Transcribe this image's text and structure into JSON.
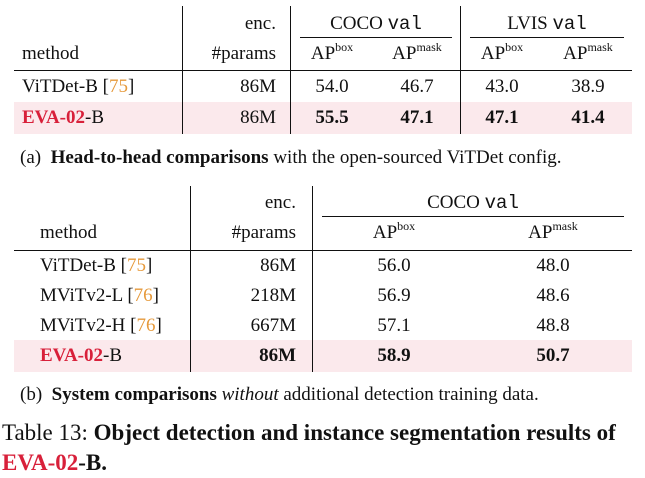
{
  "table_a": {
    "header": {
      "enc": "enc.",
      "method": "method",
      "params": "#params",
      "coco_prefix": "COCO",
      "coco_split": "val",
      "lvis_prefix": "LVIS",
      "lvis_split": "val",
      "ap": "AP",
      "box": "box",
      "mask": "mask"
    },
    "rows": [
      {
        "name": "ViTDet-B",
        "cite": "75",
        "params": "86M",
        "coco_box": "54.0",
        "coco_mask": "46.7",
        "lvis_box": "43.0",
        "lvis_mask": "38.9"
      },
      {
        "name_red": "EVA-02",
        "name_suffix": "-B",
        "params": "86M",
        "coco_box": "55.5",
        "coco_mask": "47.1",
        "lvis_box": "47.1",
        "lvis_mask": "41.4"
      }
    ],
    "caption": {
      "label": "(a)",
      "bold": "Head-to-head comparisons",
      "rest": "with the open-sourced ViTDet config."
    }
  },
  "table_b": {
    "header": {
      "enc": "enc.",
      "method": "method",
      "params": "#params",
      "coco_prefix": "COCO",
      "coco_split": "val",
      "ap": "AP",
      "box": "box",
      "mask": "mask"
    },
    "rows": [
      {
        "name": "ViTDet-B",
        "cite": "75",
        "params": "86M",
        "box": "56.0",
        "mask": "48.0"
      },
      {
        "name": "MViTv2-L",
        "cite": "76",
        "params": "218M",
        "box": "56.9",
        "mask": "48.6"
      },
      {
        "name": "MViTv2-H",
        "cite": "76",
        "params": "667M",
        "box": "57.1",
        "mask": "48.8"
      },
      {
        "name_red": "EVA-02",
        "name_suffix": "-B",
        "params": "86M",
        "box": "58.9",
        "mask": "50.7"
      }
    ],
    "caption": {
      "label": "(b)",
      "bold": "System comparisons",
      "italic": "without",
      "rest": "additional detection training data."
    }
  },
  "table_caption": {
    "label": "Table 13:",
    "bold_1": "Object detection and instance segmentation results of",
    "red": "EVA-02",
    "bold_2": "-B."
  }
}
